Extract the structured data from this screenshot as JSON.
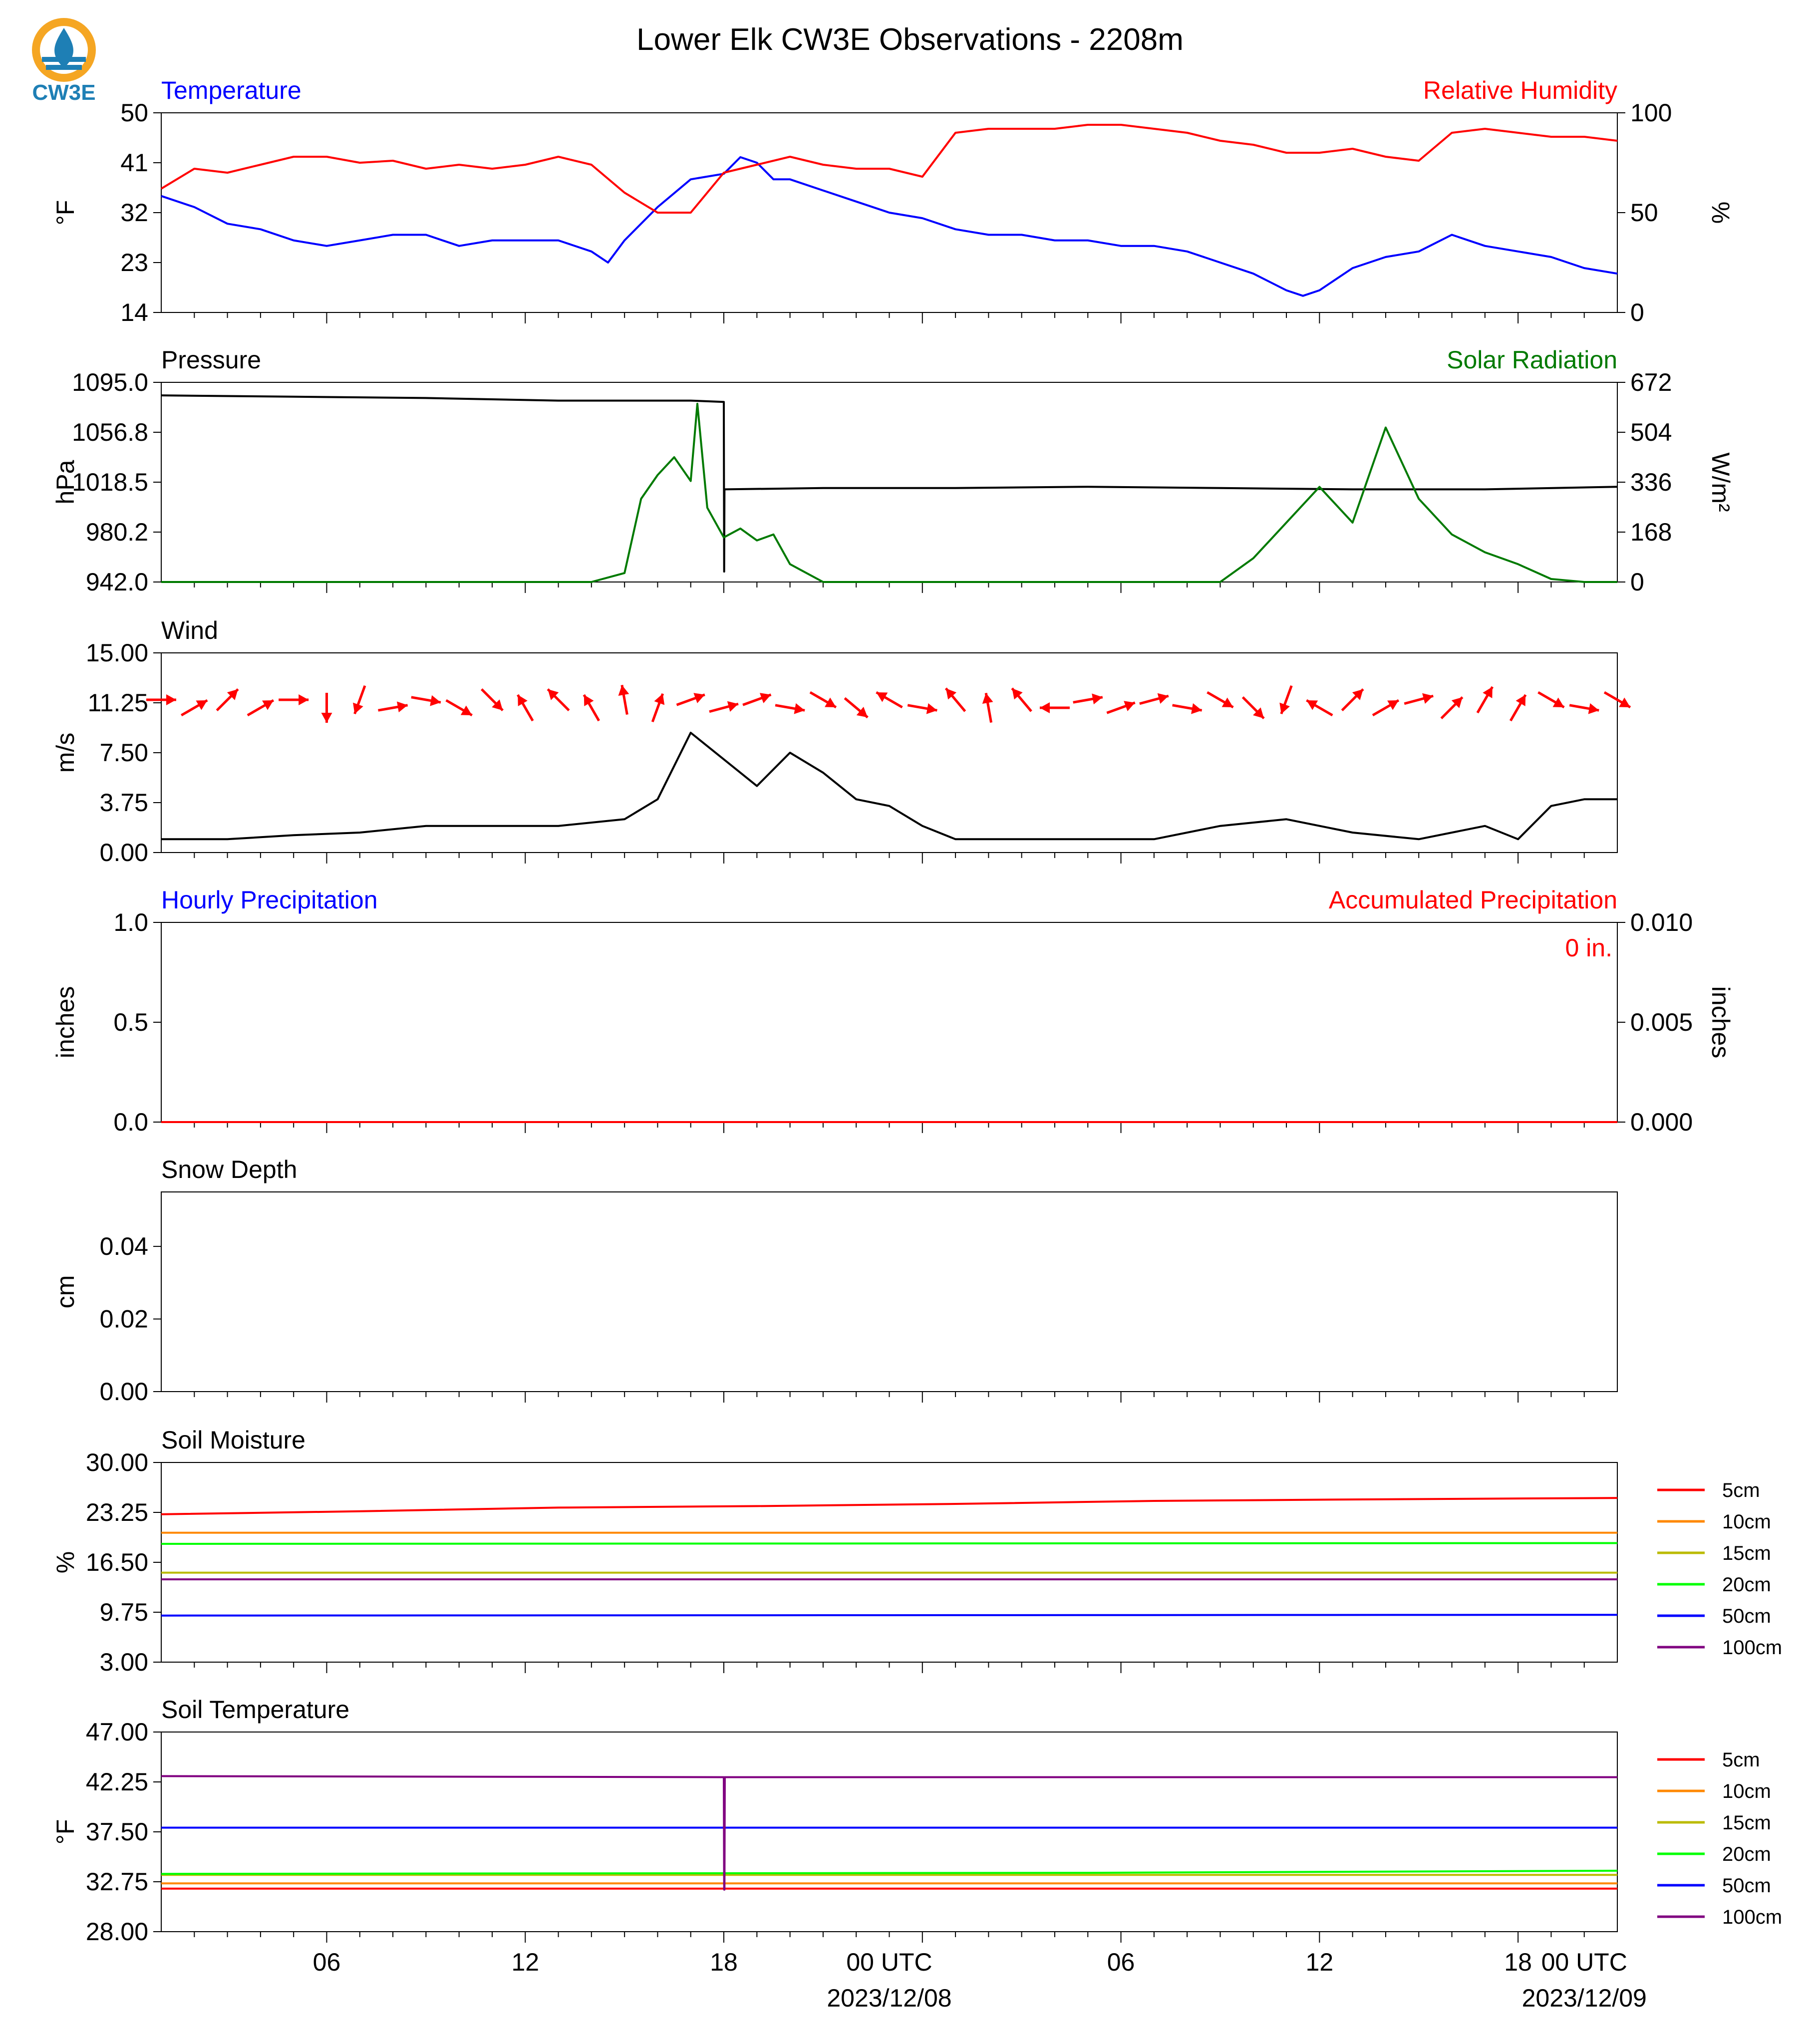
{
  "title": "Lower Elk CW3E Observations - 2208m",
  "logo": {
    "text": "CW3E",
    "icon": "cw3e-logo-icon",
    "colors": {
      "ring": "#f5a623",
      "drop": "#1e7fb5",
      "text": "#1e7fb5"
    }
  },
  "time_axis": {
    "tick_labels": [
      "06",
      "12",
      "18",
      "00 UTC",
      "06",
      "12",
      "18",
      "00 UTC"
    ],
    "date_labels": [
      "2023/12/08",
      "2023/12/09"
    ],
    "range_hours": [
      0,
      44
    ]
  },
  "colors": {
    "red": "#ff0000",
    "blue": "#0000ff",
    "black": "#000000",
    "green": "#007a00"
  },
  "chart_data": [
    {
      "type": "line",
      "panel": "temperature-humidity",
      "left_title": "Temperature",
      "right_title": "Relative Humidity",
      "ylabel": "°F",
      "ylabel_right": "%",
      "ylim": [
        14,
        50
      ],
      "yticks": [
        "50",
        "41",
        "32",
        "23",
        "14"
      ],
      "ylim_right": [
        0,
        100
      ],
      "yticks_right": [
        "100",
        "50",
        "0"
      ],
      "series": [
        {
          "name": "Temperature",
          "color": "#0000ff",
          "axis": "left",
          "x": [
            0,
            1,
            2,
            3,
            4,
            5,
            6,
            7,
            8,
            9,
            10,
            11,
            12,
            13,
            13.5,
            14,
            15,
            16,
            17,
            17.5,
            18,
            18.5,
            19,
            20,
            21,
            22,
            23,
            24,
            25,
            26,
            27,
            28,
            29,
            30,
            31,
            32,
            33,
            34,
            34.5,
            35,
            36,
            37,
            38,
            39,
            40,
            41,
            42,
            43,
            44
          ],
          "y": [
            35,
            33,
            30,
            29,
            27,
            26,
            27,
            28,
            28,
            26,
            27,
            27,
            27,
            25,
            23,
            27,
            33,
            38,
            39,
            42,
            41,
            38,
            38,
            36,
            34,
            32,
            31,
            29,
            28,
            28,
            27,
            27,
            26,
            26,
            25,
            23,
            21,
            18,
            17,
            18,
            22,
            24,
            25,
            28,
            26,
            25,
            24,
            22,
            21
          ]
        },
        {
          "name": "Relative Humidity",
          "color": "#ff0000",
          "axis": "right",
          "x": [
            0,
            1,
            2,
            3,
            4,
            5,
            6,
            7,
            8,
            9,
            10,
            11,
            12,
            13,
            14,
            15,
            16,
            17,
            18,
            19,
            20,
            21,
            22,
            23,
            24,
            25,
            26,
            27,
            28,
            29,
            30,
            31,
            32,
            33,
            34,
            35,
            36,
            37,
            38,
            39,
            40,
            41,
            42,
            43,
            44
          ],
          "y": [
            62,
            72,
            70,
            74,
            78,
            78,
            75,
            76,
            72,
            74,
            72,
            74,
            78,
            74,
            60,
            50,
            50,
            70,
            74,
            78,
            74,
            72,
            72,
            68,
            90,
            92,
            92,
            92,
            94,
            94,
            92,
            90,
            86,
            84,
            80,
            80,
            82,
            78,
            76,
            90,
            92,
            90,
            88,
            88,
            86
          ]
        }
      ]
    },
    {
      "type": "line",
      "panel": "pressure-solar",
      "left_title": "Pressure",
      "right_title": "Solar Radiation",
      "ylabel": "hPa",
      "ylabel_right": "W/m²",
      "ylim": [
        942.0,
        1095.0
      ],
      "yticks": [
        "1095.0",
        "1056.8",
        "1018.5",
        "980.2",
        "942.0"
      ],
      "ylim_right": [
        0,
        672
      ],
      "yticks_right": [
        "672",
        "504",
        "336",
        "168",
        "0"
      ],
      "series": [
        {
          "name": "Pressure",
          "color": "#000000",
          "axis": "left",
          "x": [
            0,
            4,
            8,
            12,
            16,
            17,
            17.01,
            17.02,
            20,
            24,
            28,
            32,
            36,
            40,
            44
          ],
          "y": [
            1085,
            1084,
            1083,
            1081,
            1081,
            1080,
            950,
            1013,
            1014,
            1014,
            1015,
            1014,
            1013,
            1013,
            1015
          ]
        },
        {
          "name": "Solar Radiation",
          "color": "#007a00",
          "axis": "right",
          "x": [
            0,
            13,
            14,
            14.5,
            15,
            15.5,
            16,
            16.2,
            16.5,
            17,
            17.5,
            18,
            18.5,
            19,
            20,
            20.5,
            21,
            32,
            33,
            34,
            35,
            36,
            37,
            38,
            39,
            40,
            41,
            42,
            43,
            44
          ],
          "y": [
            0,
            0,
            30,
            280,
            360,
            420,
            340,
            600,
            250,
            150,
            180,
            140,
            160,
            60,
            0,
            0,
            0,
            0,
            80,
            200,
            320,
            200,
            520,
            280,
            160,
            100,
            60,
            10,
            0,
            0
          ]
        }
      ]
    },
    {
      "type": "line",
      "panel": "wind",
      "left_title": "Wind",
      "ylabel": "m/s",
      "ylim": [
        0,
        15
      ],
      "yticks": [
        "15.00",
        "11.25",
        "7.50",
        "3.75",
        "0.00"
      ],
      "series": [
        {
          "name": "Wind Speed",
          "color": "#000000",
          "x": [
            0,
            2,
            4,
            6,
            8,
            10,
            12,
            14,
            15,
            16,
            17,
            18,
            19,
            20,
            21,
            22,
            23,
            24,
            26,
            28,
            30,
            32,
            34,
            36,
            38,
            40,
            41,
            42,
            43,
            44
          ],
          "y": [
            1,
            1,
            1.3,
            1.5,
            2,
            2,
            2,
            2.5,
            4,
            9,
            7,
            5,
            7.5,
            6,
            4,
            3.5,
            2,
            1,
            1,
            1,
            1,
            2,
            2.5,
            1.5,
            1,
            2,
            1,
            3.5,
            4,
            4
          ]
        }
      ],
      "barbs": {
        "name": "Wind direction arrows",
        "color": "#ff0000",
        "hours": [
          0,
          1,
          2,
          3,
          4,
          5,
          6,
          7,
          8,
          9,
          10,
          11,
          12,
          13,
          14,
          15,
          16,
          17,
          18,
          19,
          20,
          21,
          22,
          23,
          24,
          25,
          26,
          27,
          28,
          29,
          30,
          31,
          32,
          33,
          34,
          35,
          36,
          37,
          38,
          39,
          40,
          41,
          42,
          43,
          44
        ],
        "direction_deg": [
          90,
          60,
          45,
          60,
          90,
          180,
          200,
          80,
          100,
          120,
          135,
          330,
          315,
          330,
          350,
          20,
          70,
          75,
          70,
          100,
          120,
          130,
          300,
          100,
          320,
          350,
          320,
          270,
          80,
          70,
          75,
          100,
          120,
          135,
          200,
          300,
          45,
          60,
          75,
          45,
          30,
          30,
          120,
          100,
          120
        ]
      }
    },
    {
      "type": "line",
      "panel": "precipitation",
      "left_title": "Hourly Precipitation",
      "right_title": "Accumulated Precipitation",
      "ylabel": "inches",
      "ylabel_right": "inches",
      "ylim": [
        0,
        1.0
      ],
      "yticks": [
        "1.0",
        "0.5",
        "0.0"
      ],
      "ylim_right": [
        0,
        0.01
      ],
      "yticks_right": [
        "0.010",
        "0.005",
        "0.000"
      ],
      "annotation": "0 in.",
      "series": [
        {
          "name": "Accumulated Precipitation",
          "color": "#ff0000",
          "axis": "right",
          "x": [
            0,
            44
          ],
          "y": [
            0,
            0
          ]
        }
      ]
    },
    {
      "type": "line",
      "panel": "snow-depth",
      "left_title": "Snow Depth",
      "ylabel": "cm",
      "ylim": [
        0,
        0.055
      ],
      "yticks": [
        "0.04",
        "0.02",
        "0.00"
      ],
      "series": []
    },
    {
      "type": "line",
      "panel": "soil-moisture",
      "left_title": "Soil Moisture",
      "ylabel": "%",
      "ylim": [
        3.0,
        30.0
      ],
      "yticks": [
        "30.00",
        "23.25",
        "16.50",
        "9.75",
        "3.00"
      ],
      "series": [
        {
          "name": "5cm",
          "color": "#ff0000",
          "x": [
            0,
            6,
            12,
            18,
            24,
            30,
            36,
            44
          ],
          "y": [
            23.0,
            23.4,
            23.9,
            24.1,
            24.4,
            24.8,
            25.0,
            25.2
          ]
        },
        {
          "name": "10cm",
          "color": "#ff8800",
          "x": [
            0,
            44
          ],
          "y": [
            20.5,
            20.5
          ]
        },
        {
          "name": "15cm",
          "color": "#bbbb00",
          "x": [
            0,
            44
          ],
          "y": [
            15.1,
            15.1
          ]
        },
        {
          "name": "20cm",
          "color": "#00ff00",
          "x": [
            0,
            44
          ],
          "y": [
            19.0,
            19.1
          ]
        },
        {
          "name": "50cm",
          "color": "#0000ff",
          "x": [
            0,
            44
          ],
          "y": [
            9.3,
            9.4
          ]
        },
        {
          "name": "100cm",
          "color": "#800080",
          "x": [
            0,
            44
          ],
          "y": [
            14.2,
            14.2
          ]
        }
      ]
    },
    {
      "type": "line",
      "panel": "soil-temperature",
      "left_title": "Soil Temperature",
      "ylabel": "°F",
      "ylim": [
        28.0,
        47.0
      ],
      "yticks": [
        "47.00",
        "42.25",
        "37.50",
        "32.75",
        "28.00"
      ],
      "series": [
        {
          "name": "5cm",
          "color": "#ff0000",
          "x": [
            0,
            44
          ],
          "y": [
            32.1,
            32.1
          ]
        },
        {
          "name": "10cm",
          "color": "#ff8800",
          "x": [
            0,
            44
          ],
          "y": [
            32.6,
            32.6
          ]
        },
        {
          "name": "15cm",
          "color": "#bbbb00",
          "x": [
            0,
            44
          ],
          "y": [
            33.4,
            33.4
          ]
        },
        {
          "name": "20cm",
          "color": "#00ff00",
          "x": [
            0,
            28,
            44
          ],
          "y": [
            33.5,
            33.6,
            33.8
          ]
        },
        {
          "name": "50cm",
          "color": "#0000ff",
          "x": [
            0,
            44
          ],
          "y": [
            37.9,
            37.9
          ]
        },
        {
          "name": "100cm",
          "color": "#800080",
          "x": [
            0,
            17,
            17.01,
            17.02,
            17.03,
            44
          ],
          "y": [
            42.8,
            42.7,
            32.0,
            32.0,
            42.7,
            42.7
          ]
        }
      ]
    }
  ]
}
